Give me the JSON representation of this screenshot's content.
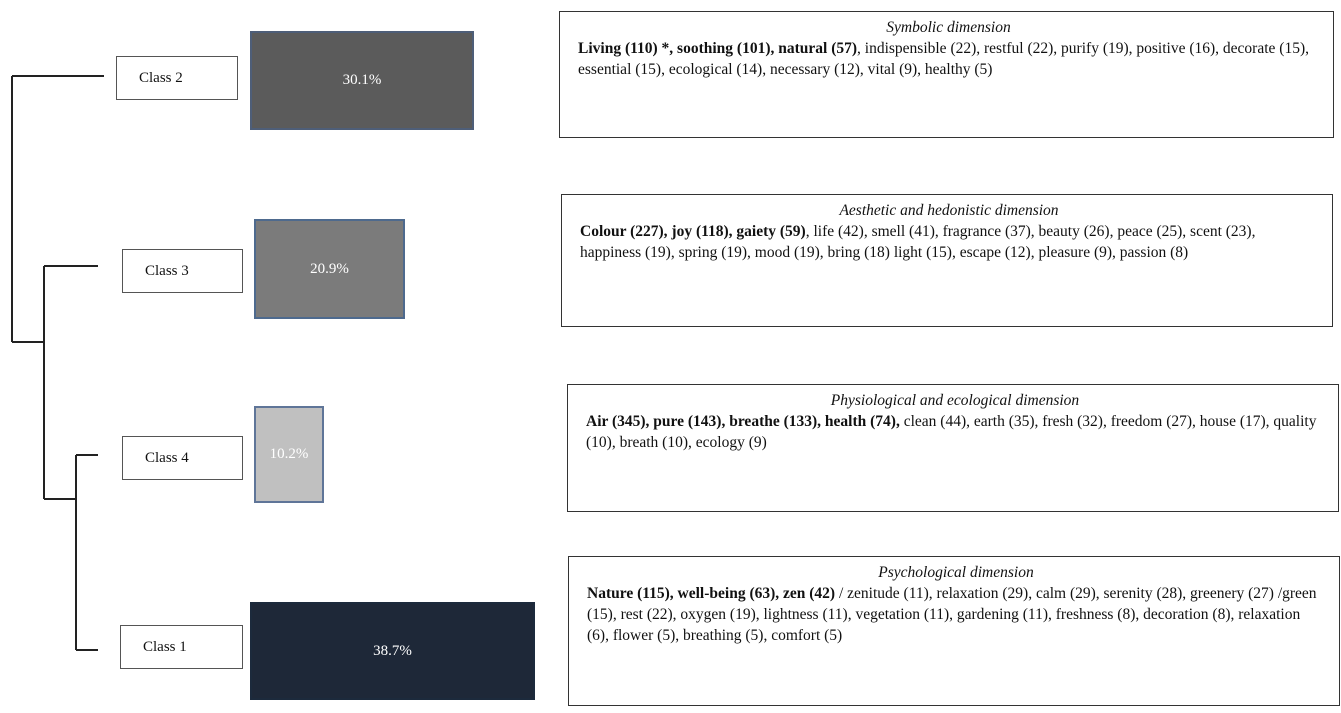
{
  "colors": {
    "class2_bar": "#5b5b5b",
    "class3_bar": "#7b7b7b",
    "class4_bar": "#c0c0c0",
    "class1_bar": "#1e2838",
    "line": "#222222"
  },
  "classes": [
    {
      "label": "Class 2",
      "percent": "30.1%",
      "share": 30.1,
      "dimension": "Symbolic dimension",
      "bold_terms": "Living (110) *, soothing (101), natural (57)",
      "other_terms": ", indispensible (22), restful (22), purify (19), positive (16), decorate (15), essential (15), ecological (14), necessary (12), vital (9), healthy (5)"
    },
    {
      "label": "Class 3",
      "percent": "20.9%",
      "share": 20.9,
      "dimension": "Aesthetic and hedonistic dimension",
      "bold_terms": "Colour (227), joy (118), gaiety (59)",
      "other_terms": ", life (42), smell (41), fragrance (37), beauty (26), peace (25), scent (23), happiness (19), spring (19), mood (19), bring (18) light (15), escape (12), pleasure (9), passion (8)"
    },
    {
      "label": "Class 4",
      "percent": "10.2%",
      "share": 10.2,
      "dimension": "Physiological and ecological dimension",
      "bold_terms": "Air (345), pure (143), breathe (133), health (74),",
      "other_terms": " clean (44), earth (35), fresh (32), freedom (27), house (17), quality (10), breath (10), ecology (9)"
    },
    {
      "label": "Class 1",
      "percent": "38.7%",
      "share": 38.7,
      "dimension": "Psychological dimension",
      "bold_terms": "Nature (115), well-being (63), zen (42)",
      "other_terms": " / zenitude (11), relaxation (29), calm (29), serenity (28), greenery (27) /green (15), rest (22), oxygen (19), lightness (11), vegetation (11), gardening (11), freshness (8), decoration (8), relaxation (6), flower (5), breathing (5), comfort (5)"
    }
  ]
}
